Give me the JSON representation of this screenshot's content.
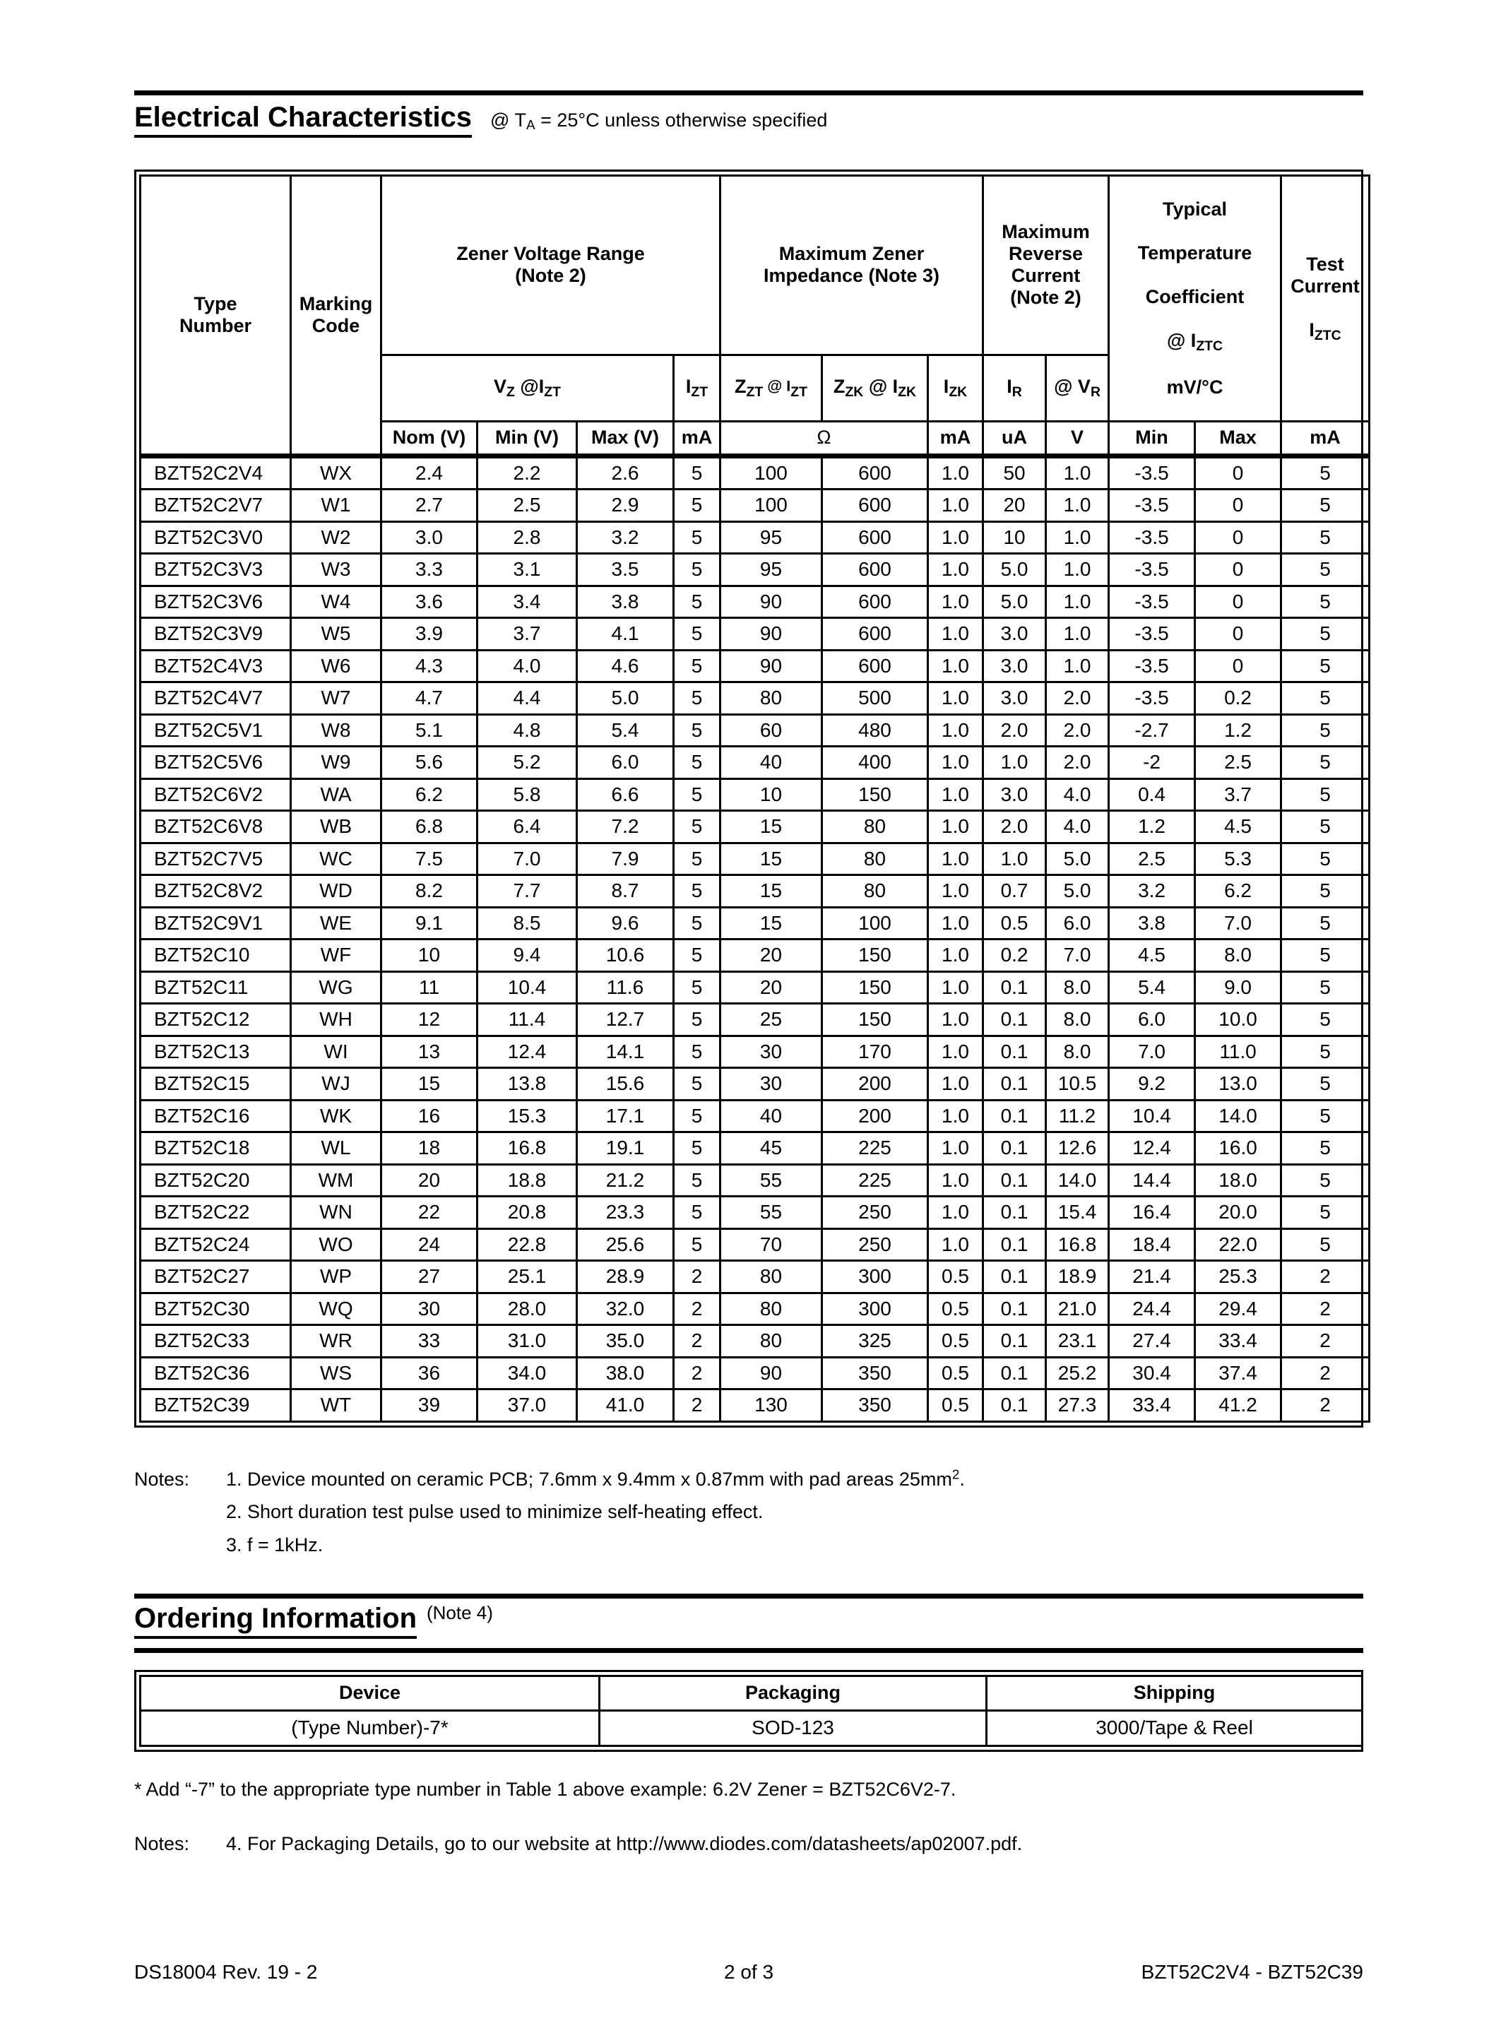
{
  "section_electrical": {
    "title": "Electrical Characteristics",
    "subtitle": {
      "pre": "@ T",
      "sub": "A",
      "post": " = 25°C unless otherwise specified"
    }
  },
  "ec_table": {
    "group_headers": {
      "type_number": "Type\nNumber",
      "marking_code": "Marking\nCode",
      "zener_voltage_range": "Zener Voltage Range\n(Note 2)",
      "max_zener_impedance": "Maximum Zener\nImpedance (Note 3)",
      "max_reverse_current": "Maximum\nReverse\nCurrent\n(Note 2)",
      "temp_coeff": {
        "l1": "Typical",
        "l2": "Temperature",
        "l3": "Coefficient",
        "l4_pre": "@ I",
        "l4_sub": "ZTC",
        "l5": "mV/°C"
      },
      "test_current": {
        "l1": "Test\nCurrent",
        "l2_pre": "I",
        "l2_sub": "ZTC"
      }
    },
    "sub_headers": {
      "vz": {
        "p1": "V",
        "s1": "Z",
        "p2": " @I",
        "s2": "ZT"
      },
      "izt": {
        "p1": "I",
        "s1": "ZT"
      },
      "zzt": {
        "p1": "Z",
        "s1": "ZT",
        "p2": " @ I",
        "s2": "ZT"
      },
      "zzk": {
        "p1": "Z",
        "s1": "ZK",
        "p2": " @ I",
        "s2": "ZK"
      },
      "izk": {
        "p1": "I",
        "s1": "ZK"
      },
      "ir": {
        "p1": "I",
        "s1": "R"
      },
      "vr": {
        "p1": "@ V",
        "s1": "R"
      }
    },
    "unit_row": [
      "Nom (V)",
      "Min (V)",
      "Max (V)",
      "mA",
      "Ω",
      "mA",
      "uA",
      "V",
      "Min",
      "Max",
      "mA"
    ],
    "rows": [
      [
        "BZT52C2V4",
        "WX",
        "2.4",
        "2.2",
        "2.6",
        "5",
        "100",
        "600",
        "1.0",
        "50",
        "1.0",
        "-3.5",
        "0",
        "5"
      ],
      [
        "BZT52C2V7",
        "W1",
        "2.7",
        "2.5",
        "2.9",
        "5",
        "100",
        "600",
        "1.0",
        "20",
        "1.0",
        "-3.5",
        "0",
        "5"
      ],
      [
        "BZT52C3V0",
        "W2",
        "3.0",
        "2.8",
        "3.2",
        "5",
        "95",
        "600",
        "1.0",
        "10",
        "1.0",
        "-3.5",
        "0",
        "5"
      ],
      [
        "BZT52C3V3",
        "W3",
        "3.3",
        "3.1",
        "3.5",
        "5",
        "95",
        "600",
        "1.0",
        "5.0",
        "1.0",
        "-3.5",
        "0",
        "5"
      ],
      [
        "BZT52C3V6",
        "W4",
        "3.6",
        "3.4",
        "3.8",
        "5",
        "90",
        "600",
        "1.0",
        "5.0",
        "1.0",
        "-3.5",
        "0",
        "5"
      ],
      [
        "BZT52C3V9",
        "W5",
        "3.9",
        "3.7",
        "4.1",
        "5",
        "90",
        "600",
        "1.0",
        "3.0",
        "1.0",
        "-3.5",
        "0",
        "5"
      ],
      [
        "BZT52C4V3",
        "W6",
        "4.3",
        "4.0",
        "4.6",
        "5",
        "90",
        "600",
        "1.0",
        "3.0",
        "1.0",
        "-3.5",
        "0",
        "5"
      ],
      [
        "BZT52C4V7",
        "W7",
        "4.7",
        "4.4",
        "5.0",
        "5",
        "80",
        "500",
        "1.0",
        "3.0",
        "2.0",
        "-3.5",
        "0.2",
        "5"
      ],
      [
        "BZT52C5V1",
        "W8",
        "5.1",
        "4.8",
        "5.4",
        "5",
        "60",
        "480",
        "1.0",
        "2.0",
        "2.0",
        "-2.7",
        "1.2",
        "5"
      ],
      [
        "BZT52C5V6",
        "W9",
        "5.6",
        "5.2",
        "6.0",
        "5",
        "40",
        "400",
        "1.0",
        "1.0",
        "2.0",
        "-2",
        "2.5",
        "5"
      ],
      [
        "BZT52C6V2",
        "WA",
        "6.2",
        "5.8",
        "6.6",
        "5",
        "10",
        "150",
        "1.0",
        "3.0",
        "4.0",
        "0.4",
        "3.7",
        "5"
      ],
      [
        "BZT52C6V8",
        "WB",
        "6.8",
        "6.4",
        "7.2",
        "5",
        "15",
        "80",
        "1.0",
        "2.0",
        "4.0",
        "1.2",
        "4.5",
        "5"
      ],
      [
        "BZT52C7V5",
        "WC",
        "7.5",
        "7.0",
        "7.9",
        "5",
        "15",
        "80",
        "1.0",
        "1.0",
        "5.0",
        "2.5",
        "5.3",
        "5"
      ],
      [
        "BZT52C8V2",
        "WD",
        "8.2",
        "7.7",
        "8.7",
        "5",
        "15",
        "80",
        "1.0",
        "0.7",
        "5.0",
        "3.2",
        "6.2",
        "5"
      ],
      [
        "BZT52C9V1",
        "WE",
        "9.1",
        "8.5",
        "9.6",
        "5",
        "15",
        "100",
        "1.0",
        "0.5",
        "6.0",
        "3.8",
        "7.0",
        "5"
      ],
      [
        "BZT52C10",
        "WF",
        "10",
        "9.4",
        "10.6",
        "5",
        "20",
        "150",
        "1.0",
        "0.2",
        "7.0",
        "4.5",
        "8.0",
        "5"
      ],
      [
        "BZT52C11",
        "WG",
        "11",
        "10.4",
        "11.6",
        "5",
        "20",
        "150",
        "1.0",
        "0.1",
        "8.0",
        "5.4",
        "9.0",
        "5"
      ],
      [
        "BZT52C12",
        "WH",
        "12",
        "11.4",
        "12.7",
        "5",
        "25",
        "150",
        "1.0",
        "0.1",
        "8.0",
        "6.0",
        "10.0",
        "5"
      ],
      [
        "BZT52C13",
        "WI",
        "13",
        "12.4",
        "14.1",
        "5",
        "30",
        "170",
        "1.0",
        "0.1",
        "8.0",
        "7.0",
        "11.0",
        "5"
      ],
      [
        "BZT52C15",
        "WJ",
        "15",
        "13.8",
        "15.6",
        "5",
        "30",
        "200",
        "1.0",
        "0.1",
        "10.5",
        "9.2",
        "13.0",
        "5"
      ],
      [
        "BZT52C16",
        "WK",
        "16",
        "15.3",
        "17.1",
        "5",
        "40",
        "200",
        "1.0",
        "0.1",
        "11.2",
        "10.4",
        "14.0",
        "5"
      ],
      [
        "BZT52C18",
        "WL",
        "18",
        "16.8",
        "19.1",
        "5",
        "45",
        "225",
        "1.0",
        "0.1",
        "12.6",
        "12.4",
        "16.0",
        "5"
      ],
      [
        "BZT52C20",
        "WM",
        "20",
        "18.8",
        "21.2",
        "5",
        "55",
        "225",
        "1.0",
        "0.1",
        "14.0",
        "14.4",
        "18.0",
        "5"
      ],
      [
        "BZT52C22",
        "WN",
        "22",
        "20.8",
        "23.3",
        "5",
        "55",
        "250",
        "1.0",
        "0.1",
        "15.4",
        "16.4",
        "20.0",
        "5"
      ],
      [
        "BZT52C24",
        "WO",
        "24",
        "22.8",
        "25.6",
        "5",
        "70",
        "250",
        "1.0",
        "0.1",
        "16.8",
        "18.4",
        "22.0",
        "5"
      ],
      [
        "BZT52C27",
        "WP",
        "27",
        "25.1",
        "28.9",
        "2",
        "80",
        "300",
        "0.5",
        "0.1",
        "18.9",
        "21.4",
        "25.3",
        "2"
      ],
      [
        "BZT52C30",
        "WQ",
        "30",
        "28.0",
        "32.0",
        "2",
        "80",
        "300",
        "0.5",
        "0.1",
        "21.0",
        "24.4",
        "29.4",
        "2"
      ],
      [
        "BZT52C33",
        "WR",
        "33",
        "31.0",
        "35.0",
        "2",
        "80",
        "325",
        "0.5",
        "0.1",
        "23.1",
        "27.4",
        "33.4",
        "2"
      ],
      [
        "BZT52C36",
        "WS",
        "36",
        "34.0",
        "38.0",
        "2",
        "90",
        "350",
        "0.5",
        "0.1",
        "25.2",
        "30.4",
        "37.4",
        "2"
      ],
      [
        "BZT52C39",
        "WT",
        "39",
        "37.0",
        "41.0",
        "2",
        "130",
        "350",
        "0.5",
        "0.1",
        "27.3",
        "33.4",
        "41.2",
        "2"
      ]
    ]
  },
  "notes_block": {
    "label": "Notes:",
    "note1_pre": "1. Device mounted on ceramic PCB; 7.6mm x 9.4mm x 0.87mm with pad areas 25mm",
    "note1_sup": "2",
    "note1_post": ".",
    "note2": "2. Short duration test pulse used to minimize self-heating effect.",
    "note3": "3. f = 1kHz."
  },
  "section_ordering": {
    "title": "Ordering Information",
    "note_ref": "(Note 4)",
    "table": {
      "headers": [
        "Device",
        "Packaging",
        "Shipping"
      ],
      "row": [
        "(Type Number)-7*",
        "SOD-123",
        "3000/Tape & Reel"
      ]
    },
    "footnote": "* Add “-7” to the appropriate type number in Table 1 above example: 6.2V Zener = BZT52C6V2-7.",
    "note4_label": "Notes:",
    "note4": "4.  For Packaging Details, go to our website at http://www.diodes.com/datasheets/ap02007.pdf."
  },
  "footer": {
    "left": "DS18004 Rev. 19 - 2",
    "center": "2 of 3",
    "right": "BZT52C2V4 - BZT52C39"
  }
}
